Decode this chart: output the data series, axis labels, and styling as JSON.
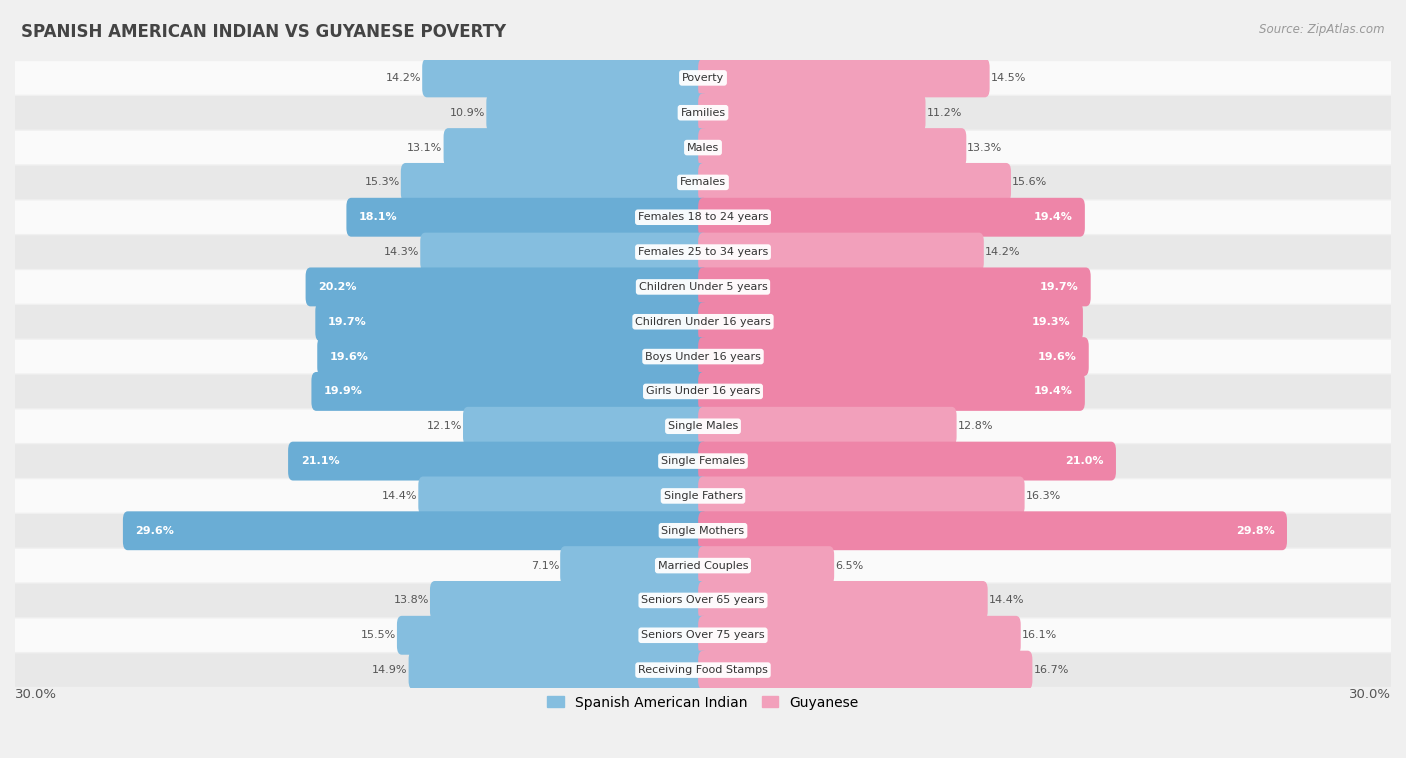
{
  "title": "SPANISH AMERICAN INDIAN VS GUYANESE POVERTY",
  "source": "Source: ZipAtlas.com",
  "categories": [
    "Poverty",
    "Families",
    "Males",
    "Females",
    "Females 18 to 24 years",
    "Females 25 to 34 years",
    "Children Under 5 years",
    "Children Under 16 years",
    "Boys Under 16 years",
    "Girls Under 16 years",
    "Single Males",
    "Single Females",
    "Single Fathers",
    "Single Mothers",
    "Married Couples",
    "Seniors Over 65 years",
    "Seniors Over 75 years",
    "Receiving Food Stamps"
  ],
  "spanish_american_indian": [
    14.2,
    10.9,
    13.1,
    15.3,
    18.1,
    14.3,
    20.2,
    19.7,
    19.6,
    19.9,
    12.1,
    21.1,
    14.4,
    29.6,
    7.1,
    13.8,
    15.5,
    14.9
  ],
  "guyanese": [
    14.5,
    11.2,
    13.3,
    15.6,
    19.4,
    14.2,
    19.7,
    19.3,
    19.6,
    19.4,
    12.8,
    21.0,
    16.3,
    29.8,
    6.5,
    14.4,
    16.1,
    16.7
  ],
  "color_blue": "#85BEDF",
  "color_pink": "#F2A0BB",
  "color_blue_sat": "#6AADD5",
  "color_pink_sat": "#EE85A8",
  "bg_color": "#f0f0f0",
  "row_color_light": "#fafafa",
  "row_color_dark": "#e8e8e8",
  "xlim": 30.0,
  "legend_label_left": "Spanish American Indian",
  "legend_label_right": "Guyanese",
  "threshold_colored": 17.0
}
